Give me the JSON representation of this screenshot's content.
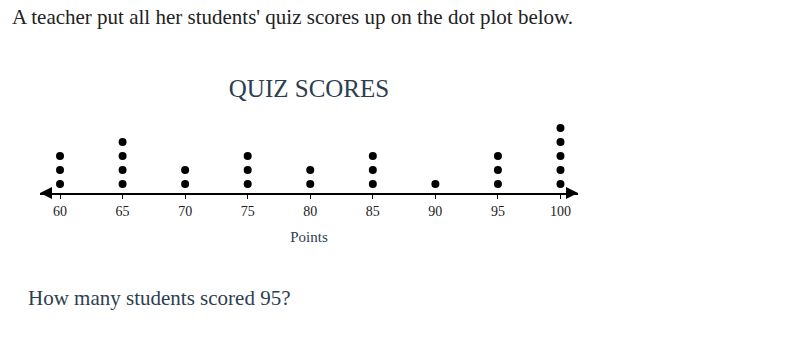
{
  "intro": "A teacher put all her students' quiz scores up on the dot plot below.",
  "question": "How many students scored 95?",
  "chart_data": {
    "type": "dot",
    "title": "QUIZ SCORES",
    "x_label": "Points",
    "x": [
      60,
      65,
      70,
      75,
      80,
      85,
      90,
      95,
      100
    ],
    "values": [
      3,
      4,
      2,
      3,
      2,
      3,
      1,
      3,
      5
    ],
    "color": "#000000",
    "xlim": [
      58.4,
      101.4
    ],
    "xticks": [
      60,
      65,
      70,
      75,
      80,
      85,
      90,
      95,
      100
    ],
    "grid": false,
    "tick_labels": "x"
  }
}
